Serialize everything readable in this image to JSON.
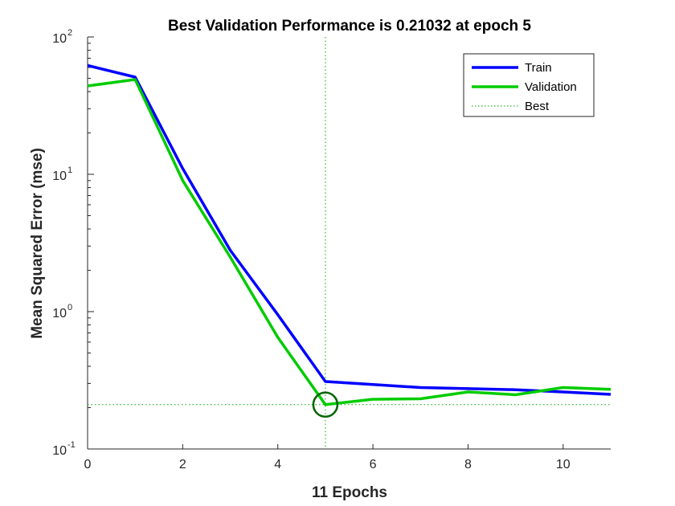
{
  "chart_data": {
    "type": "line",
    "title": "Best Validation Performance is 0.21032 at epoch 5",
    "xlabel": "11 Epochs",
    "ylabel": "Mean Squared Error  (mse)",
    "xlim": [
      0,
      11
    ],
    "ylim": [
      0.1,
      100
    ],
    "yscale": "log",
    "xticks": [
      0,
      2,
      4,
      6,
      8,
      10
    ],
    "yticks": [
      {
        "value": 0.1,
        "base": "10",
        "exp": "-1"
      },
      {
        "value": 1,
        "base": "10",
        "exp": "0"
      },
      {
        "value": 10,
        "base": "10",
        "exp": "1"
      },
      {
        "value": 100,
        "base": "10",
        "exp": "2"
      }
    ],
    "legend_position": "top-right",
    "series": [
      {
        "name": "Train",
        "color": "#0000ff",
        "style": "solid",
        "x": [
          0,
          1,
          2,
          3,
          4,
          5,
          6,
          7,
          8,
          9,
          10,
          11
        ],
        "y": [
          62,
          51,
          11,
          2.8,
          0.95,
          0.31,
          0.295,
          0.28,
          0.275,
          0.27,
          0.26,
          0.25
        ]
      },
      {
        "name": "Validation",
        "color": "#00cc00",
        "style": "solid",
        "x": [
          0,
          1,
          2,
          3,
          4,
          5,
          6,
          7,
          8,
          9,
          10,
          11
        ],
        "y": [
          44,
          49,
          9,
          2.5,
          0.65,
          0.21032,
          0.23,
          0.232,
          0.26,
          0.248,
          0.28,
          0.272
        ]
      },
      {
        "name": "Best",
        "color": "#00aa00",
        "style": "dotted"
      }
    ],
    "best": {
      "epoch": 5,
      "value": 0.21032
    }
  }
}
